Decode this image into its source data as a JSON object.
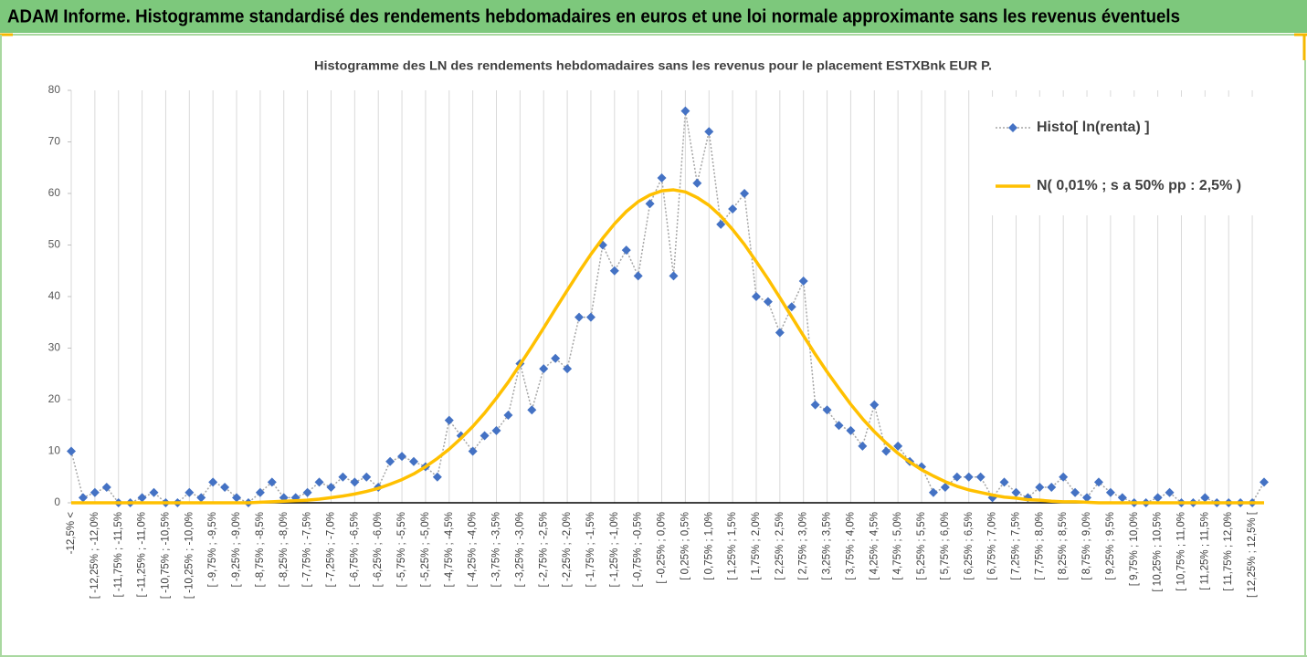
{
  "header": {
    "title": "ADAM Informe. Histogramme standardisé des rendements hebdomadaires en euros et une loi normale approximante sans les revenus éventuels"
  },
  "chart_data": {
    "type": "line",
    "title": "Histogramme  des LN des rendements hebdomadaires sans les revenus pour le placement ESTXBnk EUR P.",
    "categories": [
      "-12,5% <",
      null,
      "[ -12,25% ; -12,0%",
      null,
      "[ -11,75% ; -11,5%",
      null,
      "[ -11,25% ; -11,0%",
      null,
      "[ -10,75% ; -10,5%",
      null,
      "[ -10,25% ; -10,0%",
      null,
      "[ -9,75% ; -9,5%",
      null,
      "[ -9,25% ; -9,0%",
      null,
      "[ -8,75% ; -8,5%",
      null,
      "[ -8,25% ; -8,0%",
      null,
      "[ -7,75% ; -7,5%",
      null,
      "[ -7,25% ; -7,0%",
      null,
      "[ -6,75% ; -6,5%",
      null,
      "[ -6,25% ; -6,0%",
      null,
      "[ -5,75% ; -5,5%",
      null,
      "[ -5,25% ; -5,0%",
      null,
      "[ -4,75% ; -4,5%",
      null,
      "[ -4,25% ; -4,0%",
      null,
      "[ -3,75% ; -3,5%",
      null,
      "[ -3,25% ; -3,0%",
      null,
      "[ -2,75% ; -2,5%",
      null,
      "[ -2,25% ; -2,0%",
      null,
      "[ -1,75% ; -1,5%",
      null,
      "[ -1,25% ; -1,0%",
      null,
      "[ -0,75% ; -0,5%",
      null,
      "[ -0,25% ; 0,0%",
      null,
      "[ 0,25% ; 0,5%",
      null,
      "[ 0,75% ; 1,0%",
      null,
      "[ 1,25% ; 1,5%",
      null,
      "[ 1,75% ; 2,0%",
      null,
      "[ 2,25% ; 2,5%",
      null,
      "[ 2,75% ; 3,0%",
      null,
      "[ 3,25% ; 3,5%",
      null,
      "[ 3,75% ; 4,0%",
      null,
      "[ 4,25% ; 4,5%",
      null,
      "[ 4,75% ; 5,0%",
      null,
      "[ 5,25% ; 5,5%",
      null,
      "[ 5,75% ; 6,0%",
      null,
      "[ 6,25% ; 6,5%",
      null,
      "[ 6,75% ; 7,0%",
      null,
      "[ 7,25% ; 7,5%",
      null,
      "[ 7,75% ; 8,0%",
      null,
      "[ 8,25% ; 8,5%",
      null,
      "[ 8,75% ; 9,0%",
      null,
      "[ 9,25% ; 9,5%",
      null,
      "[ 9,75% ; 10,0%",
      null,
      "[ 10,25% ; 10,5%",
      null,
      "[ 10,75% ; 11,0%",
      null,
      "[ 11,25% ; 11,5%",
      null,
      "[ 11,75% ; 12,0%",
      null,
      "[ 12,25% ; 12,5% [",
      null
    ],
    "series": [
      {
        "name": "Histo[ ln(renta) ]",
        "color": "#4472c4",
        "line_color": "#a6a6a6",
        "marker": "diamond",
        "line_style": "dotted",
        "values": [
          10,
          1,
          2,
          3,
          0,
          0,
          1,
          2,
          0,
          0,
          2,
          1,
          4,
          3,
          1,
          0,
          2,
          4,
          1,
          1,
          2,
          4,
          3,
          5,
          4,
          5,
          3,
          8,
          9,
          8,
          7,
          5,
          16,
          13,
          10,
          13,
          14,
          17,
          27,
          18,
          26,
          28,
          26,
          36,
          36,
          50,
          45,
          49,
          44,
          58,
          63,
          44,
          76,
          62,
          72,
          54,
          57,
          60,
          40,
          39,
          33,
          38,
          43,
          19,
          18,
          15,
          14,
          11,
          19,
          10,
          11,
          8,
          7,
          2,
          3,
          5,
          5,
          5,
          1,
          4,
          2,
          1,
          3,
          3,
          5,
          2,
          1,
          4,
          2,
          1,
          0,
          0,
          1,
          2,
          0,
          0,
          1,
          0,
          0,
          0,
          0,
          4
        ]
      },
      {
        "name": "N( 0,01% ; s a 50% pp : 2,5% )",
        "color": "#ffc000",
        "marker": "none",
        "line_style": "solid",
        "values": [
          0,
          0,
          0,
          0,
          0,
          0,
          0,
          0,
          0,
          0,
          0,
          0,
          0,
          0,
          0,
          0,
          0.1,
          0.2,
          0.3,
          0.4,
          0.5,
          0.7,
          1.0,
          1.3,
          1.7,
          2.2,
          2.8,
          3.6,
          4.5,
          5.6,
          7.0,
          8.6,
          10.4,
          12.5,
          14.8,
          17.4,
          20.3,
          23.4,
          26.8,
          30.3,
          33.9,
          37.6,
          41.2,
          44.8,
          48.2,
          51.3,
          54.1,
          56.5,
          58.4,
          59.7,
          60.5,
          60.7,
          60.3,
          59.2,
          57.7,
          55.6,
          53.0,
          50.1,
          46.8,
          43.4,
          39.8,
          36.1,
          32.4,
          28.8,
          25.4,
          22.2,
          19.1,
          16.3,
          13.8,
          11.6,
          9.6,
          7.9,
          6.4,
          5.2,
          4.1,
          3.2,
          2.5,
          2.0,
          1.5,
          1.1,
          0.9,
          0.6,
          0.5,
          0.3,
          0.2,
          0.2,
          0.1,
          0,
          0,
          0,
          0,
          0,
          0,
          0,
          0,
          0,
          0,
          0,
          0,
          0,
          0,
          0
        ]
      }
    ],
    "ylim": [
      0,
      80
    ],
    "yticks": [
      0,
      10,
      20,
      30,
      40,
      50,
      60,
      70,
      80
    ],
    "grid": "vertical",
    "legend": "top-right"
  }
}
